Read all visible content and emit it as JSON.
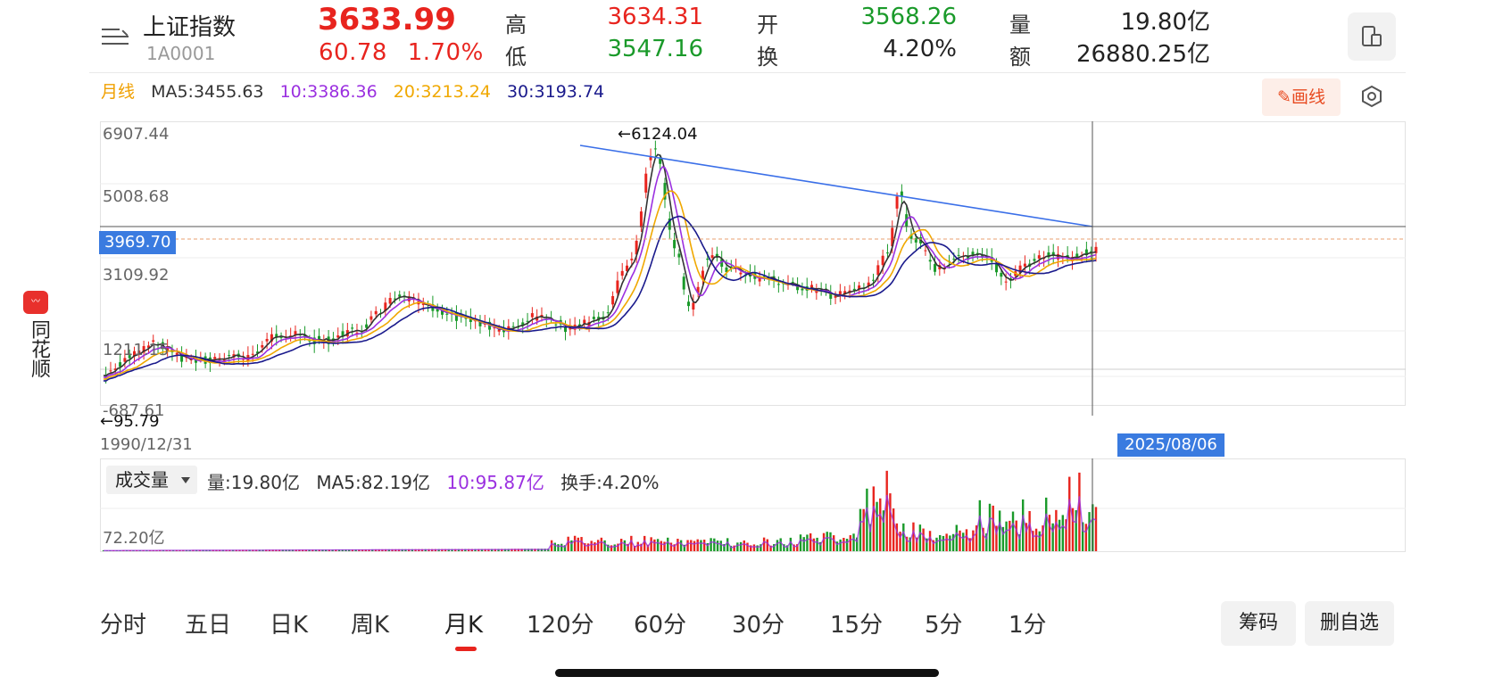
{
  "side_app": {
    "logo_icon": "app-logo-icon",
    "name": "同花顺"
  },
  "header": {
    "menu_icon": "menu-icon",
    "name": "上证指数",
    "code": "1A0001",
    "price": "3633.99",
    "change": "60.78",
    "change_pct": "1.70%",
    "high_label": "高",
    "high": "3634.31",
    "low_label": "低",
    "low": "3547.16",
    "open_label": "开",
    "open": "3568.26",
    "turnover_label": "换",
    "turnover": "4.20%",
    "volume_label": "量",
    "volume": "19.80亿",
    "amount_label": "额",
    "amount": "26880.25亿",
    "switch_icon": "device-switch-icon"
  },
  "ma_legend": {
    "period": "月线",
    "ma5": "MA5:3455.63",
    "ma10": "10:3386.36",
    "ma20": "20:3213.24",
    "ma30": "30:3193.74"
  },
  "draw_button": {
    "icon": "pencil-icon",
    "label": "画线"
  },
  "settings_icon": "settings-hexagon-icon",
  "kchart": {
    "y_labels": [
      "6907.44",
      "5008.68",
      "3109.92",
      "1211.15",
      "-687.61"
    ],
    "current_price_tag": "3969.70",
    "max_label": "←6124.04",
    "min_label": "←95.79",
    "start_date": "1990/12/31",
    "cursor_date": "2025/08/06"
  },
  "volume": {
    "indicator": "成交量",
    "vol": "量:19.80亿",
    "ma5": "MA5:82.19亿",
    "ma10": "10:95.87亿",
    "turnover": "换手:4.20%",
    "y_label": "72.20亿"
  },
  "tabs": [
    "分时",
    "五日",
    "日K",
    "周K",
    "月K",
    "120分",
    "60分",
    "30分",
    "15分",
    "5分",
    "1分"
  ],
  "active_tab": "月K",
  "buttons": {
    "chips": "筹码",
    "remove_fav": "删自选"
  },
  "colors": {
    "up": "#e8241e",
    "down": "#1a9a2a",
    "ma5": "#333333",
    "ma10": "#9b30e0",
    "ma20": "#f0a800",
    "ma30": "#1a1a8c",
    "trendline": "#3a6fe8",
    "accent": "#3a7be0"
  }
}
